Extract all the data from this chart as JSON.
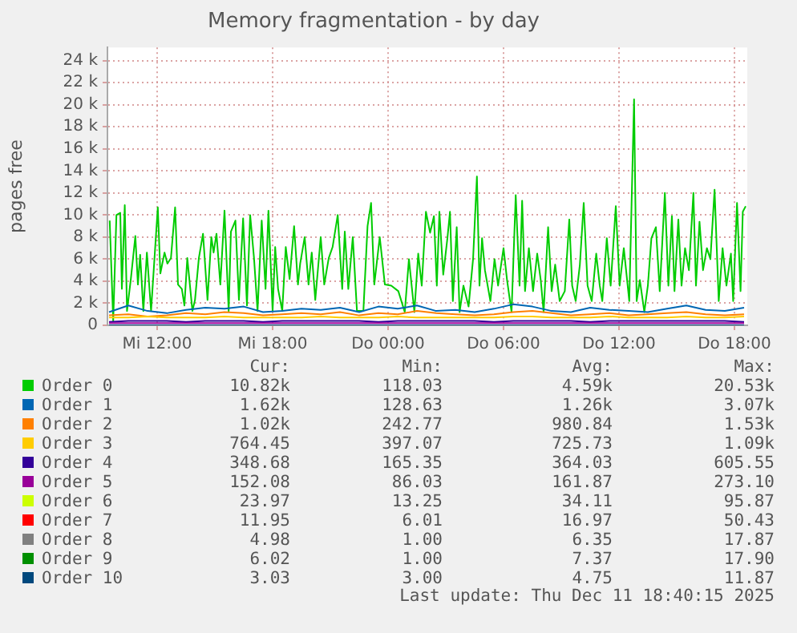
{
  "chart_data": {
    "type": "line",
    "title": "Memory fragmentation - by day",
    "ylabel": "pages free",
    "legend": "bottom",
    "grid": true,
    "marker": "none",
    "line_style": "solid",
    "xlim": [
      "2025-12-10T09:25",
      "2025-12-11T18:40"
    ],
    "xticks": [
      {
        "value": "2025-12-10T12:00",
        "label": "Mi 12:00"
      },
      {
        "value": "2025-12-10T18:00",
        "label": "Mi 18:00"
      },
      {
        "value": "2025-12-11T00:00",
        "label": "Do 00:00"
      },
      {
        "value": "2025-12-11T06:00",
        "label": "Do 06:00"
      },
      {
        "value": "2025-12-11T12:00",
        "label": "Do 12:00"
      },
      {
        "value": "2025-12-11T18:00",
        "label": "Do 18:00"
      }
    ],
    "ylim": [
      0,
      25200
    ],
    "yticks": [
      0,
      {
        "value": 2000,
        "label": "2 k"
      },
      {
        "value": 4000,
        "label": "4 k"
      },
      {
        "value": 6000,
        "label": "6 k"
      },
      {
        "value": 8000,
        "label": "8 k"
      },
      {
        "value": 10000,
        "label": "10 k"
      },
      {
        "value": 12000,
        "label": "12 k"
      },
      {
        "value": 14000,
        "label": "14 k"
      },
      {
        "value": 16000,
        "label": "16 k"
      },
      {
        "value": 18000,
        "label": "18 k"
      },
      {
        "value": 20000,
        "label": "20 k"
      },
      {
        "value": 22000,
        "label": "22 k"
      },
      {
        "value": 24000,
        "label": "24 k"
      }
    ],
    "x": [
      "2025-12-10T09:30",
      "2025-12-10T10:30",
      "2025-12-10T11:30",
      "2025-12-10T12:30",
      "2025-12-10T13:30",
      "2025-12-10T14:30",
      "2025-12-10T15:30",
      "2025-12-10T16:30",
      "2025-12-10T17:30",
      "2025-12-10T18:30",
      "2025-12-10T19:30",
      "2025-12-10T20:30",
      "2025-12-10T21:30",
      "2025-12-10T22:30",
      "2025-12-10T23:30",
      "2025-12-11T00:30",
      "2025-12-11T01:30",
      "2025-12-11T02:30",
      "2025-12-11T03:30",
      "2025-12-11T04:30",
      "2025-12-11T05:30",
      "2025-12-11T06:30",
      "2025-12-11T07:30",
      "2025-12-11T08:30",
      "2025-12-11T09:30",
      "2025-12-11T10:30",
      "2025-12-11T11:30",
      "2025-12-11T12:30",
      "2025-12-11T13:30",
      "2025-12-11T14:30",
      "2025-12-11T15:30",
      "2025-12-11T16:30",
      "2025-12-11T17:30",
      "2025-12-11T18:30"
    ],
    "series": [
      {
        "name": "Order 0",
        "color": "#00cc00",
        "x": [
          "2025-12-10T09:32",
          "2025-12-10T09:43",
          "2025-12-10T09:53",
          "2025-12-10T10:05",
          "2025-12-10T10:10",
          "2025-12-10T10:19",
          "2025-12-10T10:26",
          "2025-12-10T10:38",
          "2025-12-10T10:52",
          "2025-12-10T11:00",
          "2025-12-10T11:07",
          "2025-12-10T11:17",
          "2025-12-10T11:28",
          "2025-12-10T11:41",
          "2025-12-10T12:02",
          "2025-12-10T12:10",
          "2025-12-10T12:23",
          "2025-12-10T12:32",
          "2025-12-10T12:43",
          "2025-12-10T12:56",
          "2025-12-10T13:05",
          "2025-12-10T13:17",
          "2025-12-10T13:25",
          "2025-12-10T13:34",
          "2025-12-10T13:50",
          "2025-12-10T13:58",
          "2025-12-10T14:10",
          "2025-12-10T14:23",
          "2025-12-10T14:37",
          "2025-12-10T14:49",
          "2025-12-10T14:56",
          "2025-12-10T15:05",
          "2025-12-10T15:17",
          "2025-12-10T15:30",
          "2025-12-10T15:43",
          "2025-12-10T15:50",
          "2025-12-10T16:04",
          "2025-12-10T16:15",
          "2025-12-10T16:28",
          "2025-12-10T16:40",
          "2025-12-10T16:50",
          "2025-12-10T17:02",
          "2025-12-10T17:13",
          "2025-12-10T17:26",
          "2025-12-10T17:38",
          "2025-12-10T17:47",
          "2025-12-10T18:00",
          "2025-12-10T18:08",
          "2025-12-10T18:17",
          "2025-12-10T18:30",
          "2025-12-10T18:41",
          "2025-12-10T18:53",
          "2025-12-10T19:07",
          "2025-12-10T19:19",
          "2025-12-10T19:26",
          "2025-12-10T19:40",
          "2025-12-10T19:52",
          "2025-12-10T20:02",
          "2025-12-10T20:13",
          "2025-12-10T20:30",
          "2025-12-10T20:41",
          "2025-12-10T20:55",
          "2025-12-10T21:07",
          "2025-12-10T21:23",
          "2025-12-10T21:37",
          "2025-12-10T21:45",
          "2025-12-10T21:56",
          "2025-12-10T22:10",
          "2025-12-10T22:23",
          "2025-12-10T22:43",
          "2025-12-10T22:56",
          "2025-12-10T23:07",
          "2025-12-10T23:17",
          "2025-12-10T23:34",
          "2025-12-10T23:50",
          "2025-12-11T00:10",
          "2025-12-11T00:32",
          "2025-12-11T00:52",
          "2025-12-11T01:05",
          "2025-12-11T01:22",
          "2025-12-11T01:34",
          "2025-12-11T01:45",
          "2025-12-11T01:58",
          "2025-12-11T02:11",
          "2025-12-11T02:23",
          "2025-12-11T02:32",
          "2025-12-11T02:40",
          "2025-12-11T02:52",
          "2025-12-11T03:05",
          "2025-12-11T03:13",
          "2025-12-11T03:22",
          "2025-12-11T03:34",
          "2025-12-11T03:43",
          "2025-12-11T03:55",
          "2025-12-11T04:11",
          "2025-12-11T04:25",
          "2025-12-11T04:37",
          "2025-12-11T04:45",
          "2025-12-11T04:53",
          "2025-12-11T05:02",
          "2025-12-11T05:19",
          "2025-12-11T05:32",
          "2025-12-11T05:43",
          "2025-12-11T06:00",
          "2025-12-11T06:11",
          "2025-12-11T06:25",
          "2025-12-11T06:38",
          "2025-12-11T06:50",
          "2025-12-11T06:58",
          "2025-12-11T07:07",
          "2025-12-11T07:19",
          "2025-12-11T07:32",
          "2025-12-11T07:45",
          "2025-12-11T07:56",
          "2025-12-11T08:05",
          "2025-12-11T08:19",
          "2025-12-11T08:30",
          "2025-12-11T08:41",
          "2025-12-11T08:55",
          "2025-12-11T09:11",
          "2025-12-11T09:25",
          "2025-12-11T09:34",
          "2025-12-11T09:45",
          "2025-12-11T09:58",
          "2025-12-11T10:10",
          "2025-12-11T10:22",
          "2025-12-11T10:35",
          "2025-12-11T10:49",
          "2025-12-11T11:00",
          "2025-12-11T11:08",
          "2025-12-11T11:22",
          "2025-12-11T11:34",
          "2025-12-11T11:50",
          "2025-12-11T12:02",
          "2025-12-11T12:15",
          "2025-12-11T12:32",
          "2025-12-11T12:47",
          "2025-12-11T12:55",
          "2025-12-11T13:05",
          "2025-12-11T13:19",
          "2025-12-11T13:30",
          "2025-12-11T13:41",
          "2025-12-11T13:55",
          "2025-12-11T14:07",
          "2025-12-11T14:23",
          "2025-12-11T14:34",
          "2025-12-11T14:45",
          "2025-12-11T14:53",
          "2025-12-11T15:05",
          "2025-12-11T15:15",
          "2025-12-11T15:26",
          "2025-12-11T15:38",
          "2025-12-11T15:52",
          "2025-12-11T16:00",
          "2025-12-11T16:11",
          "2025-12-11T16:22",
          "2025-12-11T16:34",
          "2025-12-11T16:45",
          "2025-12-11T16:58",
          "2025-12-11T17:11",
          "2025-12-11T17:23",
          "2025-12-11T17:35",
          "2025-12-11T17:49",
          "2025-12-11T17:56",
          "2025-12-11T18:08",
          "2025-12-11T18:19",
          "2025-12-11T18:26",
          "2025-12-11T18:35"
        ],
        "values": [
          9500,
          400,
          10000,
          10200,
          3300,
          10900,
          1300,
          4200,
          8100,
          3700,
          6400,
          1300,
          6600,
          1300,
          10700,
          4700,
          6600,
          5600,
          6100,
          10700,
          3700,
          3300,
          1800,
          6100,
          1300,
          2300,
          6100,
          8300,
          2300,
          8000,
          6600,
          8300,
          3700,
          10400,
          1300,
          8500,
          9500,
          2300,
          9700,
          1800,
          10000,
          6100,
          1300,
          9500,
          3300,
          10400,
          1300,
          7100,
          3300,
          1300,
          7100,
          4200,
          9000,
          3700,
          5600,
          8000,
          3700,
          6600,
          2300,
          8000,
          3700,
          6100,
          7100,
          10000,
          3300,
          8500,
          3300,
          8000,
          1300,
          1300,
          9000,
          11100,
          3700,
          8000,
          3700,
          3600,
          3100,
          1200,
          6000,
          1200,
          6500,
          3600,
          10300,
          8400,
          9900,
          3600,
          10300,
          4600,
          7900,
          10300,
          2200,
          8900,
          1200,
          3600,
          1700,
          6000,
          13500,
          3600,
          7900,
          5000,
          2200,
          6000,
          3600,
          7000,
          4100,
          1200,
          11800,
          3600,
          11300,
          3100,
          7000,
          3100,
          6500,
          4100,
          1200,
          8900,
          3100,
          5500,
          2200,
          3100,
          9600,
          3600,
          2200,
          5500,
          11100,
          3600,
          2200,
          6500,
          3600,
          2200,
          7900,
          3600,
          10800,
          3600,
          7000,
          2200,
          20500,
          2200,
          4100,
          1200,
          3600,
          7900,
          8900,
          3100,
          12000,
          3600,
          9900,
          3100,
          9600,
          3600,
          7000,
          5000,
          12000,
          3600,
          9400,
          5000,
          7000,
          6000,
          12300,
          2200,
          7000,
          3600,
          6500,
          2200,
          11100,
          3100,
          10300,
          10800
        ]
      },
      {
        "name": "Order 1",
        "color": "#0066b3",
        "values": [
          1200,
          1800,
          1300,
          1100,
          1400,
          1600,
          1500,
          1700,
          1200,
          1300,
          1500,
          1400,
          1600,
          1200,
          1700,
          1500,
          1800,
          1300,
          1400,
          1200,
          1500,
          1900,
          1700,
          1300,
          1200,
          1600,
          1400,
          1300,
          1200,
          1500,
          1800,
          1400,
          1300,
          1600
        ]
      },
      {
        "name": "Order 2",
        "color": "#ff8000",
        "values": [
          900,
          1000,
          800,
          900,
          1100,
          1000,
          1200,
          1100,
          900,
          1000,
          1100,
          1000,
          1200,
          900,
          1100,
          1000,
          1300,
          1100,
          1000,
          900,
          1000,
          1200,
          1300,
          1100,
          900,
          1000,
          1100,
          900,
          1000,
          1100,
          1200,
          1000,
          900,
          1000
        ]
      },
      {
        "name": "Order 3",
        "color": "#ffcc00",
        "values": [
          700,
          700,
          800,
          700,
          700,
          700,
          800,
          700,
          700,
          700,
          700,
          800,
          700,
          700,
          700,
          800,
          700,
          700,
          700,
          700,
          700,
          800,
          800,
          700,
          700,
          700,
          800,
          700,
          700,
          700,
          800,
          700,
          700,
          800
        ]
      },
      {
        "name": "Order 4",
        "color": "#330099",
        "values": [
          300,
          400,
          400,
          400,
          300,
          400,
          400,
          400,
          300,
          400,
          400,
          400,
          400,
          400,
          300,
          400,
          400,
          400,
          400,
          400,
          300,
          400,
          400,
          400,
          400,
          300,
          400,
          400,
          400,
          400,
          400,
          400,
          400,
          300
        ]
      },
      {
        "name": "Order 5",
        "color": "#990099",
        "values": [
          200,
          200,
          200,
          200,
          200,
          200,
          200,
          200,
          200,
          200,
          200,
          200,
          200,
          200,
          200,
          200,
          200,
          200,
          200,
          200,
          200,
          200,
          200,
          200,
          200,
          200,
          200,
          200,
          200,
          200,
          200,
          200,
          200,
          200
        ]
      },
      {
        "name": "Order 6",
        "color": "#ccff00",
        "values": [
          null,
          null,
          null,
          null,
          null,
          null,
          null,
          null,
          null,
          null,
          null,
          null,
          null,
          null,
          null,
          null,
          null,
          null,
          null,
          null,
          null,
          null,
          null,
          null,
          null,
          null,
          null,
          null,
          null,
          null,
          null,
          null,
          null,
          null
        ]
      },
      {
        "name": "Order 7",
        "color": "#ff0000",
        "values": [
          null,
          null,
          null,
          null,
          null,
          null,
          null,
          null,
          null,
          null,
          null,
          null,
          null,
          null,
          null,
          null,
          null,
          null,
          null,
          null,
          null,
          null,
          null,
          null,
          null,
          null,
          null,
          null,
          null,
          null,
          null,
          null,
          null,
          null
        ]
      },
      {
        "name": "Order 8",
        "color": "#808080",
        "values": [
          null,
          null,
          null,
          null,
          null,
          null,
          null,
          null,
          null,
          null,
          null,
          null,
          null,
          null,
          null,
          null,
          null,
          null,
          null,
          null,
          null,
          null,
          null,
          null,
          null,
          null,
          null,
          null,
          null,
          null,
          null,
          null,
          null,
          null
        ]
      },
      {
        "name": "Order 9",
        "color": "#008f00",
        "values": [
          null,
          null,
          null,
          null,
          null,
          null,
          null,
          null,
          null,
          null,
          null,
          null,
          null,
          null,
          null,
          null,
          null,
          null,
          null,
          null,
          null,
          null,
          null,
          null,
          null,
          null,
          null,
          null,
          null,
          null,
          null,
          null,
          null,
          null
        ]
      },
      {
        "name": "Order 10",
        "color": "#00487d",
        "values": [
          0,
          0,
          0,
          0,
          0,
          0,
          0,
          0,
          0,
          0,
          0,
          0,
          0,
          0,
          0,
          0,
          0,
          0,
          0,
          0,
          0,
          0,
          0,
          0,
          0,
          0,
          0,
          0,
          0,
          0,
          0,
          0,
          0,
          0
        ]
      }
    ],
    "annotations": [
      "Cur:",
      "Min:",
      "Avg:",
      "Max:",
      "10.82k",
      "118.03",
      "4.59k",
      "20.53k",
      "1.62k",
      "128.63",
      "1.26k",
      "3.07k",
      "1.02k",
      "242.77",
      "980.84",
      "1.53k",
      "764.45",
      "397.07",
      "725.73",
      "1.09k",
      "348.68",
      "165.35",
      "364.03",
      "605.55",
      "152.08",
      "86.03",
      "161.87",
      "273.10",
      "23.97",
      "13.25",
      "34.11",
      "95.87",
      "11.95",
      "6.01",
      "16.97",
      "50.43",
      "4.98",
      "1.00",
      "6.35",
      "17.87",
      "6.02",
      "1.00",
      "7.37",
      "17.90",
      "3.03",
      "3.00",
      "4.75",
      "11.87",
      "Last update: Thu Dec 11 18:40:15 2025"
    ]
  }
}
